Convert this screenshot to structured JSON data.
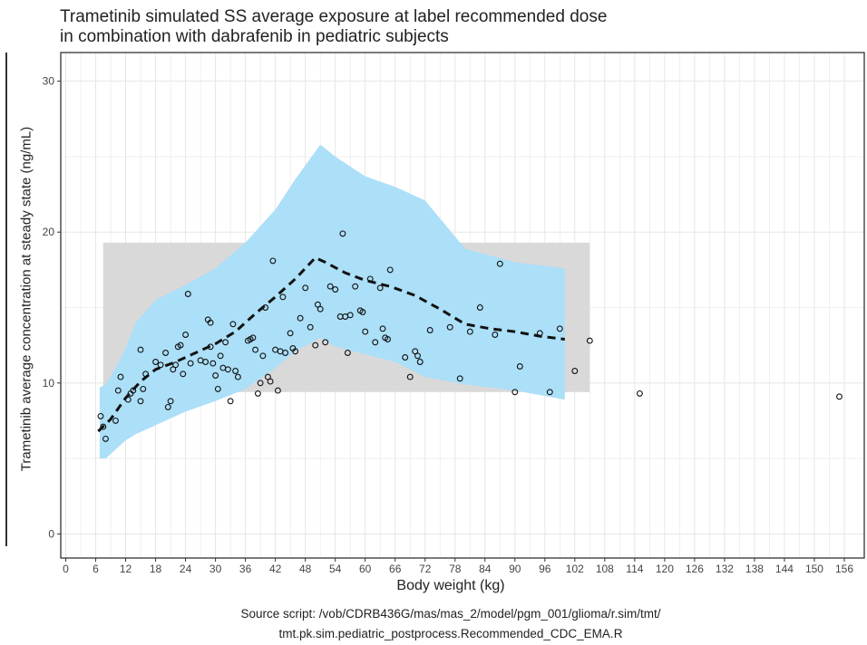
{
  "chart_data": {
    "type": "scatter",
    "title_lines": [
      "Trametinib simulated SS average exposure at label recommended dose",
      "in combination with dabrafenib in pediatric subjects"
    ],
    "xlabel": "Body weight (kg)",
    "ylabel": "Trametinib average concentration at steady state (ng/mL)",
    "caption_lines": [
      "Source script: /vob/CDRB436G/mas/mas_2/model/pgm_001/glioma/r.sim/tmt/",
      "tmt.pk.sim.pediatric_postprocess.Recommended_CDC_EMA.R"
    ],
    "xlim": [
      -1,
      160
    ],
    "ylim": [
      -1.6,
      31.9
    ],
    "x_ticks": [
      0,
      6,
      12,
      18,
      24,
      30,
      36,
      42,
      48,
      54,
      60,
      66,
      72,
      78,
      84,
      90,
      96,
      102,
      108,
      114,
      120,
      126,
      132,
      138,
      144,
      150,
      156
    ],
    "y_ticks": [
      0,
      10,
      20,
      30
    ],
    "grid": true,
    "colors": {
      "band": "#acdff8",
      "reference_box": "#d9d9d9",
      "trend": "#111111",
      "points": "#111111",
      "grid": "#e6e6e6"
    },
    "reference_box": {
      "x": [
        7.5,
        105
      ],
      "y": [
        9.4,
        19.3
      ]
    },
    "band": {
      "x": [
        6.8,
        8,
        10,
        12,
        14,
        18,
        24,
        30,
        36,
        42,
        46,
        51,
        54,
        60,
        66,
        72,
        80,
        90,
        100
      ],
      "upper": [
        9.7,
        9.9,
        11.0,
        12.3,
        14.0,
        15.5,
        16.5,
        17.6,
        19.3,
        21.5,
        23.5,
        25.8,
        25.0,
        23.7,
        23.0,
        22.1,
        18.9,
        18.0,
        17.6
      ],
      "lower": [
        5.0,
        5.0,
        5.6,
        6.2,
        6.6,
        7.2,
        8.1,
        8.8,
        9.6,
        11.0,
        12.1,
        13.0,
        12.4,
        11.9,
        11.4,
        10.4,
        9.9,
        9.5,
        8.9
      ]
    },
    "trend": {
      "x": [
        6.5,
        9,
        12,
        15,
        18,
        22,
        26,
        30,
        34,
        38,
        42,
        46,
        50,
        52,
        56,
        60,
        65,
        70,
        75,
        80,
        85,
        90,
        95,
        100
      ],
      "y": [
        6.8,
        7.6,
        9.0,
        10.1,
        10.9,
        11.4,
        12.0,
        12.6,
        13.4,
        14.6,
        15.7,
        16.9,
        18.3,
        18.0,
        17.3,
        16.8,
        16.4,
        15.8,
        14.9,
        13.9,
        13.6,
        13.4,
        13.1,
        12.9
      ]
    },
    "points": [
      [
        7,
        7.8
      ],
      [
        8,
        6.3
      ],
      [
        7.5,
        7.1
      ],
      [
        10,
        7.5
      ],
      [
        10.5,
        9.5
      ],
      [
        11,
        10.4
      ],
      [
        12.5,
        8.9
      ],
      [
        13,
        9.3
      ],
      [
        13.5,
        9.5
      ],
      [
        15,
        8.8
      ],
      [
        15,
        12.2
      ],
      [
        15.5,
        9.6
      ],
      [
        16,
        10.6
      ],
      [
        18,
        11.4
      ],
      [
        19,
        11.2
      ],
      [
        20,
        12.0
      ],
      [
        20.5,
        8.4
      ],
      [
        21,
        8.8
      ],
      [
        21.5,
        10.9
      ],
      [
        22,
        11.2
      ],
      [
        22.5,
        12.4
      ],
      [
        23,
        12.5
      ],
      [
        23.5,
        10.6
      ],
      [
        24,
        13.2
      ],
      [
        24.5,
        15.9
      ],
      [
        25,
        11.3
      ],
      [
        27,
        11.5
      ],
      [
        28,
        11.4
      ],
      [
        28.5,
        14.2
      ],
      [
        29,
        14.0
      ],
      [
        29,
        12.4
      ],
      [
        29.5,
        11.3
      ],
      [
        30,
        10.5
      ],
      [
        30.5,
        9.6
      ],
      [
        31,
        11.8
      ],
      [
        31.5,
        11.0
      ],
      [
        32,
        12.7
      ],
      [
        32.5,
        10.9
      ],
      [
        33,
        8.8
      ],
      [
        33.5,
        13.9
      ],
      [
        34,
        10.8
      ],
      [
        34.5,
        10.4
      ],
      [
        36.5,
        12.8
      ],
      [
        37,
        12.9
      ],
      [
        37.5,
        13.0
      ],
      [
        38,
        12.2
      ],
      [
        38.5,
        9.3
      ],
      [
        39,
        10.0
      ],
      [
        39.5,
        11.8
      ],
      [
        40,
        15.0
      ],
      [
        40.5,
        10.4
      ],
      [
        41,
        10.1
      ],
      [
        41.5,
        18.1
      ],
      [
        42,
        12.2
      ],
      [
        42.5,
        9.5
      ],
      [
        43,
        12.1
      ],
      [
        43.5,
        15.7
      ],
      [
        44,
        12.0
      ],
      [
        45,
        13.3
      ],
      [
        45.5,
        12.3
      ],
      [
        46,
        12.1
      ],
      [
        47,
        14.3
      ],
      [
        48,
        16.3
      ],
      [
        49,
        13.7
      ],
      [
        50,
        12.5
      ],
      [
        50.5,
        15.2
      ],
      [
        51,
        14.9
      ],
      [
        52,
        12.7
      ],
      [
        53,
        16.4
      ],
      [
        54,
        16.2
      ],
      [
        55,
        14.4
      ],
      [
        55.5,
        19.9
      ],
      [
        56,
        14.4
      ],
      [
        56.5,
        12.0
      ],
      [
        57,
        14.5
      ],
      [
        58,
        16.4
      ],
      [
        59,
        14.8
      ],
      [
        59.5,
        14.7
      ],
      [
        60,
        13.4
      ],
      [
        61,
        16.9
      ],
      [
        62,
        12.7
      ],
      [
        63,
        16.3
      ],
      [
        63.5,
        13.6
      ],
      [
        64,
        13.0
      ],
      [
        64.5,
        12.9
      ],
      [
        65,
        17.5
      ],
      [
        68,
        11.7
      ],
      [
        69,
        10.4
      ],
      [
        70,
        12.1
      ],
      [
        70.5,
        11.8
      ],
      [
        71,
        11.4
      ],
      [
        73,
        13.5
      ],
      [
        77,
        13.7
      ],
      [
        79,
        10.3
      ],
      [
        81,
        13.4
      ],
      [
        83,
        15.0
      ],
      [
        86,
        13.2
      ],
      [
        87,
        17.9
      ],
      [
        90,
        9.4
      ],
      [
        91,
        11.1
      ],
      [
        95,
        13.3
      ],
      [
        97,
        9.4
      ],
      [
        99,
        13.6
      ],
      [
        102,
        10.8
      ],
      [
        105,
        12.8
      ],
      [
        115,
        9.3
      ],
      [
        155,
        9.1
      ]
    ]
  }
}
